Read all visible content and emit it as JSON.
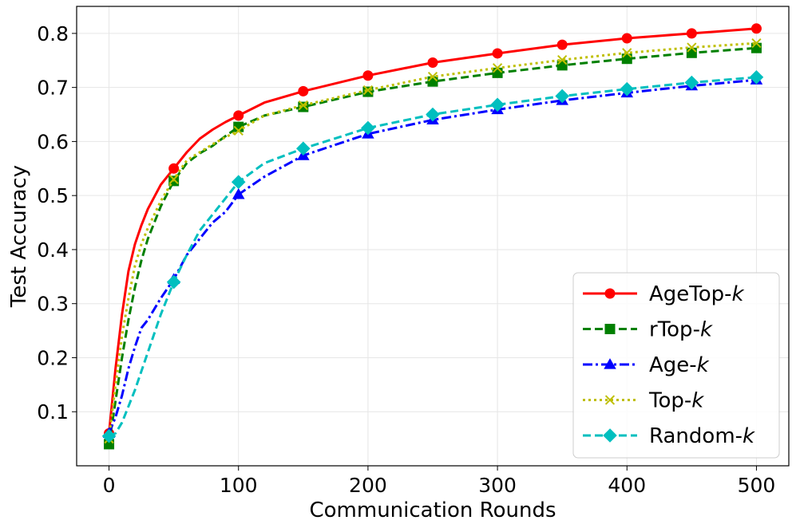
{
  "chart_data": {
    "type": "line",
    "xlabel": "Communication Rounds",
    "ylabel": "Test Accuracy",
    "xlim": [
      -25,
      525
    ],
    "ylim": [
      0.0,
      0.85
    ],
    "xticks": [
      "0",
      "100",
      "200",
      "300",
      "400",
      "500"
    ],
    "yticks": [
      "0.1",
      "0.2",
      "0.3",
      "0.4",
      "0.5",
      "0.6",
      "0.7",
      "0.8"
    ],
    "grid": true,
    "legend_position": "bottom-right",
    "series": [
      {
        "name": "AgeTop-k",
        "legend_base": "AgeTop-",
        "legend_var": "k",
        "color": "#ff0000",
        "dash": "solid",
        "marker": "circle",
        "x": [
          0,
          5,
          10,
          15,
          20,
          25,
          30,
          40,
          50,
          60,
          70,
          80,
          90,
          100,
          120,
          150,
          200,
          250,
          300,
          350,
          400,
          450,
          500
        ],
        "y": [
          0.06,
          0.18,
          0.28,
          0.36,
          0.41,
          0.445,
          0.475,
          0.52,
          0.55,
          0.58,
          0.605,
          0.622,
          0.636,
          0.648,
          0.672,
          0.693,
          0.722,
          0.746,
          0.763,
          0.779,
          0.791,
          0.8,
          0.809
        ]
      },
      {
        "name": "rTop-k",
        "legend_base": "rTop-",
        "legend_var": "k",
        "color": "#008000",
        "dash": "dashed",
        "marker": "square",
        "x": [
          0,
          5,
          10,
          15,
          20,
          25,
          30,
          40,
          50,
          60,
          70,
          80,
          90,
          100,
          120,
          150,
          200,
          250,
          300,
          350,
          400,
          450,
          500
        ],
        "y": [
          0.04,
          0.12,
          0.2,
          0.27,
          0.33,
          0.38,
          0.42,
          0.48,
          0.527,
          0.56,
          0.578,
          0.592,
          0.61,
          0.627,
          0.648,
          0.664,
          0.692,
          0.711,
          0.727,
          0.741,
          0.753,
          0.764,
          0.773
        ]
      },
      {
        "name": "Age-k",
        "legend_base": "Age-",
        "legend_var": "k",
        "color": "#0000ff",
        "dash": "dashdot",
        "marker": "triangle",
        "x": [
          0,
          5,
          10,
          15,
          20,
          25,
          30,
          40,
          50,
          60,
          70,
          80,
          90,
          100,
          120,
          150,
          200,
          250,
          300,
          350,
          400,
          450,
          500
        ],
        "y": [
          0.06,
          0.09,
          0.13,
          0.18,
          0.22,
          0.255,
          0.27,
          0.31,
          0.345,
          0.39,
          0.42,
          0.45,
          0.47,
          0.502,
          0.535,
          0.574,
          0.614,
          0.64,
          0.659,
          0.676,
          0.69,
          0.703,
          0.714
        ]
      },
      {
        "name": "Top-k",
        "legend_base": "Top-",
        "legend_var": "k",
        "color": "#bfbf00",
        "dash": "dotted",
        "marker": "x",
        "x": [
          0,
          5,
          10,
          15,
          20,
          25,
          30,
          40,
          50,
          60,
          70,
          80,
          90,
          100,
          120,
          150,
          200,
          250,
          300,
          350,
          400,
          450,
          500
        ],
        "y": [
          0.05,
          0.15,
          0.24,
          0.31,
          0.37,
          0.41,
          0.44,
          0.49,
          0.53,
          0.565,
          0.58,
          0.595,
          0.608,
          0.62,
          0.648,
          0.667,
          0.695,
          0.72,
          0.736,
          0.751,
          0.764,
          0.774,
          0.782
        ]
      },
      {
        "name": "Random-k",
        "legend_base": "Random-",
        "legend_var": "k",
        "color": "#00bfbf",
        "dash": "dashed",
        "marker": "diamond",
        "x": [
          0,
          5,
          10,
          15,
          20,
          25,
          30,
          40,
          50,
          60,
          70,
          80,
          90,
          100,
          120,
          150,
          200,
          250,
          300,
          350,
          400,
          450,
          500
        ],
        "y": [
          0.055,
          0.06,
          0.08,
          0.11,
          0.14,
          0.175,
          0.21,
          0.28,
          0.34,
          0.39,
          0.435,
          0.465,
          0.495,
          0.525,
          0.56,
          0.587,
          0.625,
          0.65,
          0.668,
          0.684,
          0.697,
          0.709,
          0.719
        ]
      }
    ]
  }
}
